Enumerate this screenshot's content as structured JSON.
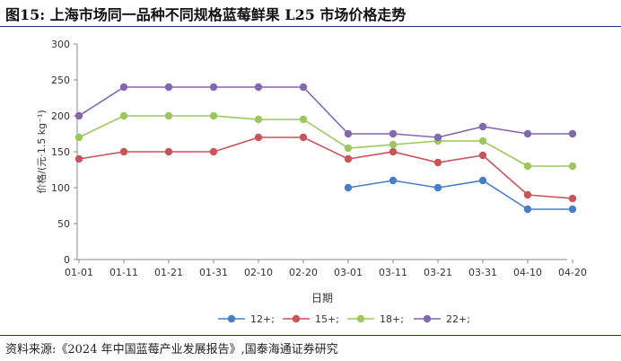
{
  "figure": {
    "title": "图15:  上海市场同一品种不同规格蓝莓鲜果  L25  市场价格走势",
    "source": "资料来源:《2024 年中国蓝莓产业发展报告》,国泰海通证券研究"
  },
  "chart_data": {
    "type": "line",
    "title": "",
    "xlabel": "日期",
    "ylabel": "价格/(元·1.5 kg⁻¹)",
    "ylim": [
      0,
      300
    ],
    "yticks": [
      0,
      50,
      100,
      150,
      200,
      250,
      300
    ],
    "grid": false,
    "legend_position": "bottom",
    "x": [
      "01-01",
      "01-11",
      "01-21",
      "01-31",
      "02-10",
      "02-20",
      "03-01",
      "03-11",
      "03-21",
      "03-31",
      "04-10",
      "04-20"
    ],
    "series": [
      {
        "name": "12+;",
        "color": "#4a7ec4",
        "values": [
          null,
          null,
          null,
          null,
          null,
          null,
          100,
          110,
          100,
          110,
          70,
          70
        ]
      },
      {
        "name": "15+;",
        "color": "#c9545a",
        "values": [
          140,
          150,
          150,
          150,
          170,
          170,
          140,
          150,
          135,
          145,
          90,
          85
        ]
      },
      {
        "name": "18+;",
        "color": "#9cc75c",
        "values": [
          170,
          200,
          200,
          200,
          195,
          195,
          155,
          160,
          165,
          165,
          130,
          130
        ]
      },
      {
        "name": "22+;",
        "color": "#8268ad",
        "values": [
          200,
          240,
          240,
          240,
          240,
          240,
          175,
          175,
          170,
          185,
          175,
          175
        ]
      }
    ]
  }
}
